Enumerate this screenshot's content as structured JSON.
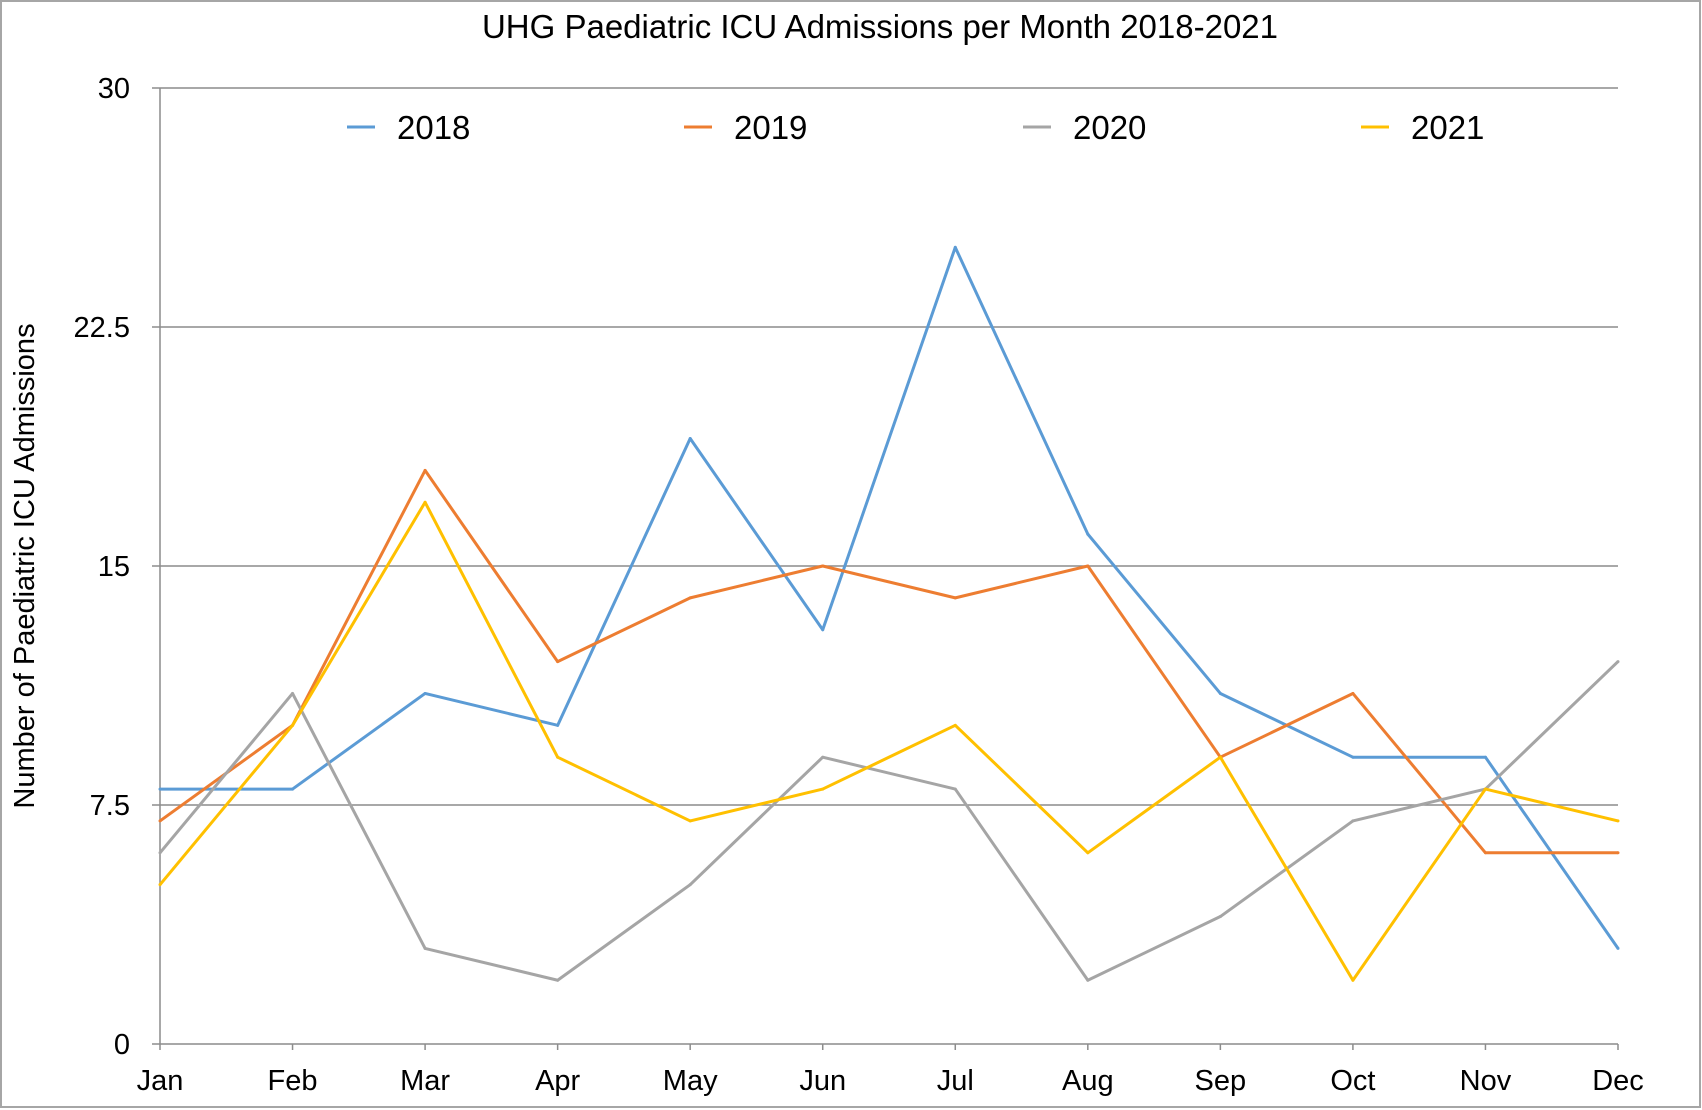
{
  "chart_data": {
    "type": "line",
    "title": "UHG Paediatric ICU Admissions per Month 2018-2021",
    "xlabel": "",
    "ylabel": "Number of Paediatric ICU Admissions",
    "categories": [
      "Jan",
      "Feb",
      "Mar",
      "Apr",
      "May",
      "Jun",
      "Jul",
      "Aug",
      "Sep",
      "Oct",
      "Nov",
      "Dec"
    ],
    "ylim": [
      0,
      30
    ],
    "yticks": [
      "0",
      "7.5",
      "15",
      "22.5",
      "30"
    ],
    "grid": true,
    "legend_position": "top",
    "series": [
      {
        "name": "2018",
        "color": "#5B9BD5",
        "values": [
          8,
          8,
          11,
          10,
          19,
          13,
          25,
          16,
          11,
          9,
          9,
          3
        ]
      },
      {
        "name": "2019",
        "color": "#ED7D31",
        "values": [
          7,
          10,
          18,
          12,
          14,
          15,
          14,
          15,
          9,
          11,
          6,
          6
        ]
      },
      {
        "name": "2020",
        "color": "#A5A5A5",
        "values": [
          6,
          11,
          3,
          2,
          5,
          9,
          8,
          2,
          4,
          7,
          8,
          12
        ]
      },
      {
        "name": "2021",
        "color": "#FFC000",
        "values": [
          5,
          10,
          17,
          9,
          7,
          8,
          10,
          6,
          9,
          2,
          8,
          7
        ]
      }
    ]
  }
}
